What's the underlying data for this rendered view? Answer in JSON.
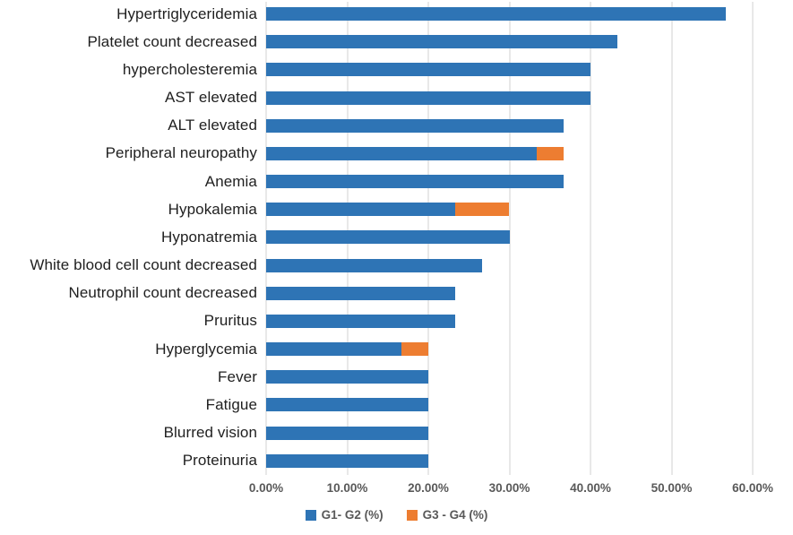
{
  "chart_data": {
    "type": "bar",
    "orientation": "horizontal",
    "stacked": true,
    "title": "",
    "xlabel": "",
    "ylabel": "",
    "grid": true,
    "legend_position": "bottom",
    "categories": [
      "Hypertriglyceridemia",
      "Platelet count decreased",
      "hypercholesteremia",
      "AST elevated",
      "ALT elevated",
      "Peripheral neuropathy",
      "Anemia",
      "Hypokalemia",
      "Hyponatremia",
      "White blood cell count decreased",
      "Neutrophil count decreased",
      "Pruritus",
      "Hyperglycemia",
      "Fever",
      "Fatigue",
      "Blurred vision",
      "Proteinuria"
    ],
    "series": [
      {
        "name": "G1- G2 (%)",
        "color": "#2e74b5",
        "values": [
          56.67,
          43.33,
          40.0,
          40.0,
          36.67,
          33.33,
          36.67,
          23.33,
          30.0,
          26.67,
          23.33,
          23.33,
          16.67,
          20.0,
          20.0,
          20.0,
          20.0
        ]
      },
      {
        "name": "G3 - G4 (%)",
        "color": "#ed7d31",
        "values": [
          0,
          0,
          0,
          0,
          0,
          3.33,
          0,
          6.67,
          0,
          0,
          0,
          0,
          3.33,
          0,
          0,
          0,
          0
        ]
      }
    ],
    "x_axis": {
      "min": 0,
      "max": 60,
      "tick_step": 10,
      "tick_labels": [
        "0.00%",
        "10.00%",
        "20.00%",
        "30.00%",
        "40.00%",
        "50.00%",
        "60.00%"
      ]
    },
    "colors": {
      "gridline": "#e8e8e8",
      "axis_text": "#595959",
      "category_text": "#1f1f1f",
      "background": "#ffffff"
    }
  }
}
